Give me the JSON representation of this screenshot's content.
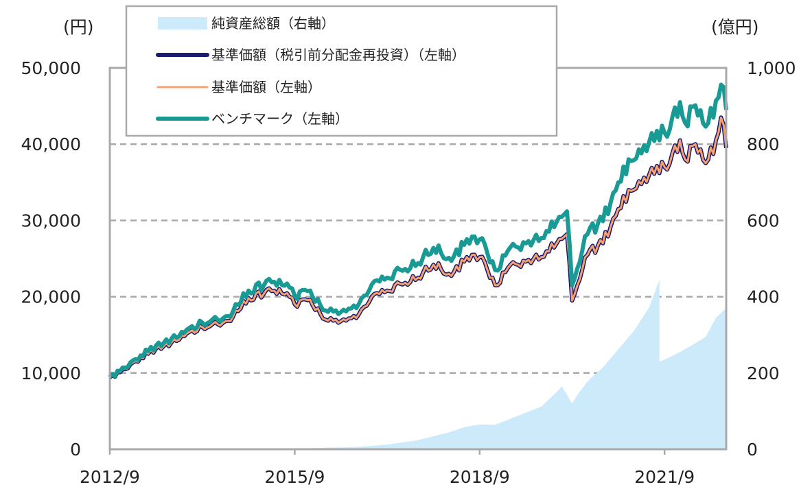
{
  "chart_data": {
    "type": "line",
    "left_axis": {
      "unit": "(円)",
      "ylim": [
        0,
        50000
      ],
      "ticks": [
        0,
        10000,
        20000,
        30000,
        40000,
        50000
      ],
      "tick_labels": [
        "0",
        "10,000",
        "20,000",
        "30,000",
        "40,000",
        "50,000"
      ]
    },
    "right_axis": {
      "unit": "(億円)",
      "ylim": [
        0,
        1000
      ],
      "ticks": [
        0,
        200,
        400,
        600,
        800,
        1000
      ],
      "tick_labels": [
        "0",
        "200",
        "400",
        "600",
        "800",
        "1,000"
      ]
    },
    "x_axis": {
      "range": [
        "2012/9",
        "2022/9"
      ],
      "tick_labels": [
        "2012/9",
        "2015/9",
        "2018/9",
        "2021/9"
      ]
    },
    "grid": "horizontal-dashed",
    "legend_position": "top-left",
    "colors": {
      "net_assets": "#cdeafb",
      "nav_reinvested": "#1a1a6e",
      "nav": "#f5a070",
      "benchmark": "#1a9a94"
    },
    "series": [
      {
        "name": "純資産総額（右軸）",
        "axis": "right",
        "kind": "area",
        "points": [
          [
            "2012/9",
            0
          ],
          [
            "2014/9",
            1
          ],
          [
            "2015/9",
            2
          ],
          [
            "2016/3",
            4
          ],
          [
            "2016/9",
            6
          ],
          [
            "2017/3",
            12
          ],
          [
            "2017/9",
            24
          ],
          [
            "2018/3",
            44
          ],
          [
            "2018/6",
            58
          ],
          [
            "2018/9",
            65
          ],
          [
            "2018/12",
            64
          ],
          [
            "2019/3",
            80
          ],
          [
            "2019/6",
            96
          ],
          [
            "2019/9",
            112
          ],
          [
            "2019/12",
            150
          ],
          [
            "2020/1",
            165
          ],
          [
            "2020/3",
            120
          ],
          [
            "2020/4",
            142
          ],
          [
            "2020/6",
            178
          ],
          [
            "2020/9",
            215
          ],
          [
            "2020/12",
            262
          ],
          [
            "2021/3",
            310
          ],
          [
            "2021/6",
            372
          ],
          [
            "2021/8",
            445
          ],
          [
            "2021/8",
            230
          ],
          [
            "2021/9",
            235
          ],
          [
            "2021/12",
            255
          ],
          [
            "2022/3",
            278
          ],
          [
            "2022/5",
            295
          ],
          [
            "2022/7",
            345
          ],
          [
            "2022/9",
            370
          ]
        ]
      },
      {
        "name": "基準価額（税引前分配金再投資）（左軸）",
        "axis": "left",
        "kind": "line",
        "points": [
          [
            "2012/9",
            9400
          ],
          [
            "2012/12",
            10500
          ],
          [
            "2013/3",
            12000
          ],
          [
            "2013/6",
            13200
          ],
          [
            "2013/9",
            14000
          ],
          [
            "2013/12",
            15200
          ],
          [
            "2014/3",
            16000
          ],
          [
            "2014/6",
            16400
          ],
          [
            "2014/9",
            17400
          ],
          [
            "2014/12",
            19800
          ],
          [
            "2015/3",
            20400
          ],
          [
            "2015/6",
            21000
          ],
          [
            "2015/9",
            19000
          ],
          [
            "2015/12",
            19600
          ],
          [
            "2016/3",
            17000
          ],
          [
            "2016/6",
            16800
          ],
          [
            "2016/9",
            17200
          ],
          [
            "2016/12",
            20000
          ],
          [
            "2017/3",
            20800
          ],
          [
            "2017/6",
            21600
          ],
          [
            "2017/9",
            22500
          ],
          [
            "2017/12",
            24200
          ],
          [
            "2018/3",
            23000
          ],
          [
            "2018/6",
            24600
          ],
          [
            "2018/9",
            25200
          ],
          [
            "2018/12",
            21500
          ],
          [
            "2019/3",
            24200
          ],
          [
            "2019/6",
            24600
          ],
          [
            "2019/9",
            25200
          ],
          [
            "2019/12",
            27000
          ],
          [
            "2020/2",
            28200
          ],
          [
            "2020/3",
            19500
          ],
          [
            "2020/6",
            25500
          ],
          [
            "2020/9",
            27000
          ],
          [
            "2020/12",
            31500
          ],
          [
            "2021/3",
            34000
          ],
          [
            "2021/6",
            36000
          ],
          [
            "2021/9",
            37000
          ],
          [
            "2021/12",
            40500
          ],
          [
            "2022/1",
            38000
          ],
          [
            "2022/3",
            40000
          ],
          [
            "2022/5",
            37500
          ],
          [
            "2022/7",
            40500
          ],
          [
            "2022/8",
            43500
          ],
          [
            "2022/9",
            39500
          ]
        ]
      },
      {
        "name": "基準価額（左軸）",
        "axis": "left",
        "kind": "line",
        "points": [
          [
            "2012/9",
            9400
          ],
          [
            "2012/12",
            10500
          ],
          [
            "2013/3",
            12000
          ],
          [
            "2013/6",
            13200
          ],
          [
            "2013/9",
            14000
          ],
          [
            "2013/12",
            15200
          ],
          [
            "2014/3",
            16000
          ],
          [
            "2014/6",
            16400
          ],
          [
            "2014/9",
            17400
          ],
          [
            "2014/12",
            19800
          ],
          [
            "2015/3",
            20400
          ],
          [
            "2015/6",
            21000
          ],
          [
            "2015/9",
            19000
          ],
          [
            "2015/12",
            19600
          ],
          [
            "2016/3",
            17000
          ],
          [
            "2016/6",
            16800
          ],
          [
            "2016/9",
            17200
          ],
          [
            "2016/12",
            20000
          ],
          [
            "2017/3",
            20800
          ],
          [
            "2017/6",
            21600
          ],
          [
            "2017/9",
            22500
          ],
          [
            "2017/12",
            24200
          ],
          [
            "2018/3",
            23000
          ],
          [
            "2018/6",
            24600
          ],
          [
            "2018/9",
            25200
          ],
          [
            "2018/12",
            21500
          ],
          [
            "2019/3",
            24200
          ],
          [
            "2019/6",
            24600
          ],
          [
            "2019/9",
            25200
          ],
          [
            "2019/12",
            27000
          ],
          [
            "2020/2",
            28200
          ],
          [
            "2020/3",
            19500
          ],
          [
            "2020/6",
            25500
          ],
          [
            "2020/9",
            27000
          ],
          [
            "2020/12",
            31500
          ],
          [
            "2021/3",
            34000
          ],
          [
            "2021/6",
            36000
          ],
          [
            "2021/9",
            37000
          ],
          [
            "2021/12",
            40500
          ],
          [
            "2022/1",
            38000
          ],
          [
            "2022/3",
            40000
          ],
          [
            "2022/5",
            37500
          ],
          [
            "2022/7",
            40500
          ],
          [
            "2022/8",
            43500
          ],
          [
            "2022/9",
            39500
          ]
        ]
      },
      {
        "name": "ベンチマーク（左軸）",
        "axis": "left",
        "kind": "line",
        "points": [
          [
            "2012/9",
            9500
          ],
          [
            "2012/12",
            10700
          ],
          [
            "2013/3",
            12300
          ],
          [
            "2013/6",
            13600
          ],
          [
            "2013/9",
            14500
          ],
          [
            "2013/12",
            15700
          ],
          [
            "2014/3",
            16600
          ],
          [
            "2014/6",
            17000
          ],
          [
            "2014/9",
            18100
          ],
          [
            "2014/12",
            20800
          ],
          [
            "2015/3",
            21500
          ],
          [
            "2015/6",
            22200
          ],
          [
            "2015/9",
            20100
          ],
          [
            "2015/12",
            20800
          ],
          [
            "2016/3",
            18200
          ],
          [
            "2016/6",
            18000
          ],
          [
            "2016/9",
            18500
          ],
          [
            "2016/12",
            21600
          ],
          [
            "2017/3",
            22500
          ],
          [
            "2017/6",
            23400
          ],
          [
            "2017/9",
            24400
          ],
          [
            "2017/12",
            26400
          ],
          [
            "2018/3",
            25100
          ],
          [
            "2018/6",
            26800
          ],
          [
            "2018/9",
            27500
          ],
          [
            "2018/12",
            23500
          ],
          [
            "2019/3",
            26500
          ],
          [
            "2019/6",
            27000
          ],
          [
            "2019/9",
            27700
          ],
          [
            "2019/12",
            29800
          ],
          [
            "2020/2",
            31200
          ],
          [
            "2020/3",
            21500
          ],
          [
            "2020/6",
            28200
          ],
          [
            "2020/9",
            29900
          ],
          [
            "2020/12",
            35000
          ],
          [
            "2021/3",
            37900
          ],
          [
            "2021/6",
            40300
          ],
          [
            "2021/9",
            41500
          ],
          [
            "2021/12",
            45500
          ],
          [
            "2022/1",
            42800
          ],
          [
            "2022/3",
            45100
          ],
          [
            "2022/5",
            42300
          ],
          [
            "2022/7",
            45700
          ],
          [
            "2022/8",
            47800
          ],
          [
            "2022/9",
            44500
          ]
        ]
      }
    ]
  }
}
